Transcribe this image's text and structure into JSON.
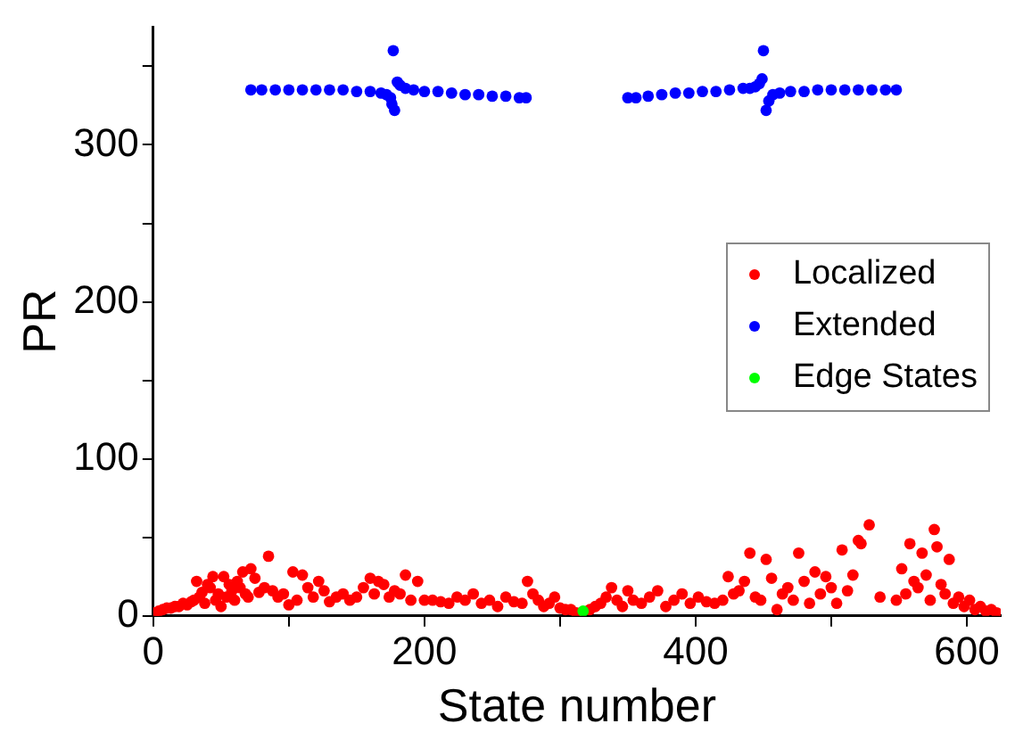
{
  "chart_data": {
    "type": "scatter",
    "xlabel": "State number",
    "ylabel": "PR",
    "xlim": [
      0,
      625
    ],
    "ylim": [
      0,
      375
    ],
    "xticks": [
      0,
      {
        "value": 100,
        "label": null
      },
      200,
      {
        "value": 300,
        "label": null
      },
      400,
      {
        "value": 500,
        "label": null
      },
      600
    ],
    "yticks": [
      0,
      {
        "value": 50,
        "label": null
      },
      100,
      {
        "value": 150,
        "label": null
      },
      200,
      {
        "value": 250,
        "label": null
      },
      300,
      {
        "value": 350,
        "label": null
      }
    ],
    "marker": "circle",
    "grid": false,
    "legend": "right",
    "series": [
      {
        "name": "Localized",
        "color": "#ff0000",
        "x": [
          1,
          4,
          7,
          10,
          13,
          16,
          19,
          22,
          25,
          28,
          30,
          32,
          34,
          36,
          38,
          40,
          42,
          44,
          46,
          48,
          50,
          52,
          54,
          56,
          58,
          60,
          62,
          64,
          66,
          68,
          70,
          72,
          75,
          78,
          82,
          85,
          88,
          92,
          96,
          100,
          103,
          106,
          110,
          114,
          118,
          122,
          126,
          130,
          135,
          140,
          145,
          150,
          155,
          160,
          163,
          166,
          170,
          174,
          178,
          182,
          186,
          190,
          195,
          200,
          206,
          212,
          218,
          224,
          230,
          236,
          242,
          248,
          254,
          260,
          266,
          272,
          276,
          280,
          284,
          288,
          292,
          296,
          300,
          304,
          308,
          312,
          322,
          326,
          330,
          334,
          338,
          342,
          346,
          350,
          354,
          360,
          366,
          372,
          378,
          384,
          390,
          396,
          402,
          408,
          414,
          420,
          424,
          428,
          432,
          436,
          440,
          444,
          448,
          452,
          456,
          460,
          464,
          468,
          472,
          476,
          480,
          484,
          488,
          492,
          496,
          500,
          504,
          508,
          512,
          516,
          520,
          522,
          528,
          536,
          548,
          552,
          555,
          558,
          561,
          564,
          567,
          570,
          573,
          576,
          578,
          581,
          584,
          587,
          590,
          594,
          598,
          602,
          606,
          610,
          614,
          618,
          622
        ],
        "values": [
          2,
          3,
          4,
          5,
          5,
          6,
          6,
          8,
          7,
          9,
          10,
          22,
          12,
          15,
          8,
          20,
          18,
          25,
          10,
          14,
          6,
          25,
          12,
          20,
          16,
          10,
          22,
          18,
          28,
          14,
          12,
          30,
          24,
          15,
          18,
          38,
          16,
          12,
          14,
          7,
          28,
          10,
          26,
          18,
          12,
          22,
          16,
          9,
          12,
          14,
          10,
          12,
          18,
          24,
          14,
          22,
          20,
          12,
          16,
          14,
          26,
          10,
          22,
          10,
          10,
          9,
          8,
          12,
          10,
          14,
          8,
          10,
          6,
          12,
          9,
          8,
          22,
          14,
          10,
          6,
          8,
          12,
          5,
          4,
          4,
          2,
          4,
          6,
          8,
          12,
          18,
          10,
          6,
          16,
          10,
          8,
          12,
          16,
          6,
          10,
          14,
          8,
          12,
          9,
          8,
          10,
          25,
          14,
          16,
          22,
          40,
          12,
          10,
          36,
          24,
          4,
          14,
          18,
          10,
          40,
          22,
          8,
          28,
          14,
          25,
          18,
          8,
          42,
          16,
          26,
          48,
          46,
          58,
          12,
          10,
          30,
          14,
          46,
          22,
          18,
          40,
          26,
          10,
          55,
          44,
          20,
          14,
          36,
          8,
          12,
          6,
          10,
          4,
          6,
          3,
          4,
          2
        ]
      },
      {
        "name": "Extended",
        "color": "#0000ff",
        "x": [
          72,
          80,
          90,
          100,
          110,
          120,
          130,
          140,
          150,
          160,
          168,
          172,
          175,
          176,
          177,
          178,
          180,
          182,
          186,
          192,
          200,
          210,
          220,
          230,
          240,
          250,
          260,
          270,
          275,
          350,
          356,
          365,
          375,
          385,
          395,
          405,
          415,
          425,
          435,
          440,
          444,
          447,
          449,
          450,
          452,
          454,
          457,
          462,
          470,
          480,
          490,
          500,
          510,
          520,
          530,
          540,
          548
        ],
        "values": [
          335,
          335,
          335,
          335,
          335,
          335,
          335,
          335,
          334,
          334,
          333,
          332,
          330,
          326,
          360,
          322,
          340,
          338,
          336,
          335,
          334,
          334,
          333,
          332,
          332,
          331,
          331,
          330,
          330,
          330,
          330,
          331,
          332,
          333,
          333,
          334,
          334,
          335,
          336,
          336,
          337,
          339,
          342,
          360,
          322,
          328,
          332,
          333,
          334,
          334,
          335,
          335,
          335,
          335,
          335,
          335,
          335
        ]
      },
      {
        "name": "Edge States",
        "color": "#00ff00",
        "x": [
          317
        ],
        "values": [
          3
        ]
      }
    ]
  }
}
